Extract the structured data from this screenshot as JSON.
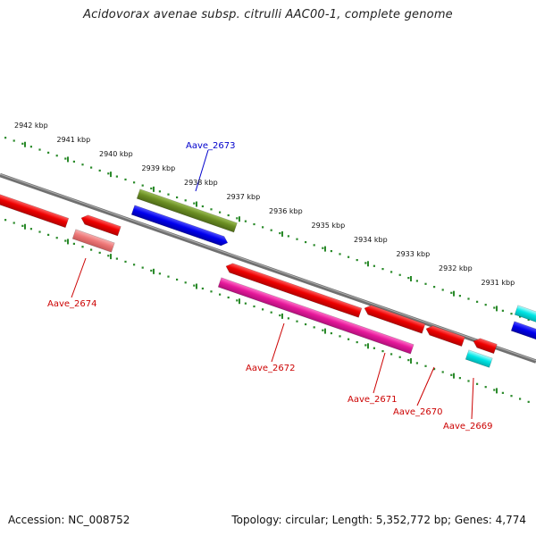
{
  "header": {
    "title": "Acidovorax avenae subsp. citrulli AAC00-1, complete genome"
  },
  "footer": {
    "accession": "Accession: NC_008752",
    "info": "Topology: circular; Length: 5,352,772 bp; Genes: 4,774"
  },
  "colors": {
    "backbone": "#7f7f7f",
    "tick": "#2a8a2a",
    "label_blue": "#0000cc",
    "label_red": "#cc0000",
    "red": "#ee0000",
    "light_red": "#ee7777",
    "blue": "#0000ee",
    "olive": "#6b8e23",
    "magenta": "#e6189a",
    "cyan": "#00e5e5"
  },
  "kbp_labels": [
    "2942 kbp",
    "2941 kbp",
    "2940 kbp",
    "2939 kbp",
    "2938 kbp",
    "2937 kbp",
    "2936 kbp",
    "2935 kbp",
    "2934 kbp",
    "2933 kbp",
    "2932 kbp",
    "2931 kbp"
  ],
  "gene_labels": [
    {
      "id": "Aave_2673",
      "color": "blue"
    },
    {
      "id": "Aave_2674",
      "color": "red"
    },
    {
      "id": "Aave_2672",
      "color": "red"
    },
    {
      "id": "Aave_2671",
      "color": "red"
    },
    {
      "id": "Aave_2670",
      "color": "red"
    },
    {
      "id": "Aave_2669",
      "color": "red"
    }
  ]
}
